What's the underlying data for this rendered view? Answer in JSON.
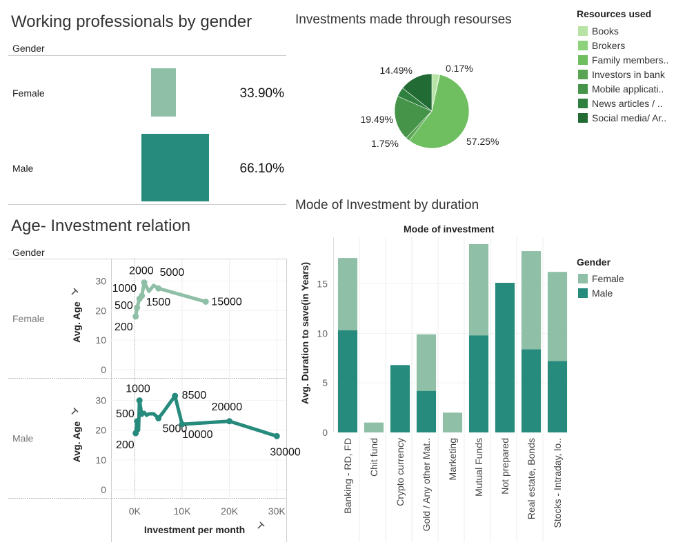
{
  "colors": {
    "female": "#8fbfa6",
    "male": "#268a7c",
    "pie": [
      "#b8e3a6",
      "#8dd27a",
      "#6fbe60",
      "#5aa554",
      "#469449",
      "#2f7f3f",
      "#236b35"
    ]
  },
  "gender_panel": {
    "title": "Working professionals by gender",
    "column_header": "Gender",
    "rows": [
      {
        "label": "Female",
        "percent_label": "33.90%"
      },
      {
        "label": "Male",
        "percent_label": "66.10%"
      }
    ]
  },
  "pie_panel": {
    "title": "Investments made through resourses",
    "legend_title": "Resources used",
    "legend": [
      "Books",
      "Brokers",
      "Family members..",
      "Investors in bank",
      "Mobile applicati..",
      "News articles / ..",
      "Social media/ Ar.."
    ]
  },
  "age_panel": {
    "title": "Age- Investment relation",
    "column_header": "Gender",
    "rows": [
      "Female",
      "Male"
    ],
    "y_axis_label": "Avg. Age",
    "x_axis_label": "Investment per month",
    "y_ticks": [
      "0",
      "10",
      "20",
      "30"
    ],
    "x_ticks": [
      "0K",
      "10K",
      "20K",
      "30K"
    ]
  },
  "bar_panel": {
    "title": "Mode of Investment by duration",
    "subtitle": "Mode of investment",
    "y_axis_label": "Avg. Duration to save(in Years)",
    "y_ticks": [
      "0",
      "5",
      "10",
      "15"
    ],
    "legend_title": "Gender",
    "legend": [
      "Female",
      "Male"
    ]
  },
  "chart_data": [
    {
      "type": "bar",
      "title": "Working professionals by gender",
      "categories": [
        "Female",
        "Male"
      ],
      "values": [
        33.9,
        66.1
      ],
      "unit": "%"
    },
    {
      "type": "pie",
      "title": "Investments made through resourses",
      "categories": [
        "Books",
        "Brokers",
        "Family members..",
        "Investors in bank",
        "Mobile applicati..",
        "News articles / ..",
        "Social media/ Ar.."
      ],
      "values": [
        3.3,
        0.17,
        57.25,
        1.75,
        19.49,
        4.1,
        14.49
      ],
      "data_labels": [
        {
          "category": "Brokers",
          "label": "0.17%"
        },
        {
          "category": "Family members..",
          "label": "57.25%"
        },
        {
          "category": "Investors in bank",
          "label": "1.75%"
        },
        {
          "category": "Mobile applicati..",
          "label": "19.49%"
        },
        {
          "category": "Social media/ Ar..",
          "label": "14.49%"
        }
      ]
    },
    {
      "type": "line",
      "title": "Age- Investment relation",
      "xlabel": "Investment per month",
      "ylabel": "Avg. Age",
      "xlim": [
        -5000,
        32000
      ],
      "ylim": [
        0,
        35
      ],
      "series": [
        {
          "name": "Female",
          "points": [
            [
              200,
              18
            ],
            [
              500,
              21
            ],
            [
              1000,
              24
            ],
            [
              1500,
              25
            ],
            [
              2000,
              29.5
            ],
            [
              3000,
              26.5
            ],
            [
              4000,
              28.5
            ],
            [
              5000,
              27.5
            ],
            [
              15000,
              23
            ]
          ],
          "labels": [
            {
              "x": 200,
              "text": "200"
            },
            {
              "x": 500,
              "text": "500"
            },
            {
              "x": 1000,
              "text": "1000"
            },
            {
              "x": 1500,
              "text": "1500"
            },
            {
              "x": 2000,
              "text": "2000"
            },
            {
              "x": 5000,
              "text": "5000"
            },
            {
              "x": 15000,
              "text": "15000"
            }
          ]
        },
        {
          "name": "Male",
          "points": [
            [
              200,
              19
            ],
            [
              500,
              23
            ],
            [
              800,
              20
            ],
            [
              1000,
              30
            ],
            [
              1500,
              25
            ],
            [
              2000,
              26
            ],
            [
              2500,
              25
            ],
            [
              3000,
              25.5
            ],
            [
              4000,
              25.5
            ],
            [
              5000,
              24
            ],
            [
              6000,
              26
            ],
            [
              8500,
              31.5
            ],
            [
              10000,
              22
            ],
            [
              20000,
              23
            ],
            [
              30000,
              18
            ]
          ],
          "labels": [
            {
              "x": 200,
              "text": "200"
            },
            {
              "x": 500,
              "text": "500"
            },
            {
              "x": 1000,
              "text": "1000"
            },
            {
              "x": 5000,
              "text": "5000"
            },
            {
              "x": 8500,
              "text": "8500"
            },
            {
              "x": 10000,
              "text": "10000"
            },
            {
              "x": 20000,
              "text": "20000"
            },
            {
              "x": 30000,
              "text": "30000"
            }
          ]
        }
      ]
    },
    {
      "type": "bar",
      "stacked": true,
      "title": "Mode of Investment by duration",
      "subtitle": "Mode of investment",
      "ylabel": "Avg. Duration to save(in Years)",
      "ylim": [
        0,
        19
      ],
      "categories": [
        "Banking - RD, FD",
        "Chit fund",
        "Crypto currency",
        "Gold / Any other Mat..",
        "Marketing",
        "Mutual Funds",
        "Not prepared",
        "Real estate, Bonds",
        "Stocks - Intraday, lo.."
      ],
      "series": [
        {
          "name": "Male",
          "values": [
            10.3,
            0,
            6.8,
            4.2,
            0,
            9.8,
            15.1,
            8.4,
            7.2
          ]
        },
        {
          "name": "Female",
          "values": [
            7.3,
            1.0,
            0,
            5.7,
            2.0,
            9.2,
            0,
            9.9,
            9.0
          ]
        }
      ],
      "legend": "right"
    }
  ]
}
